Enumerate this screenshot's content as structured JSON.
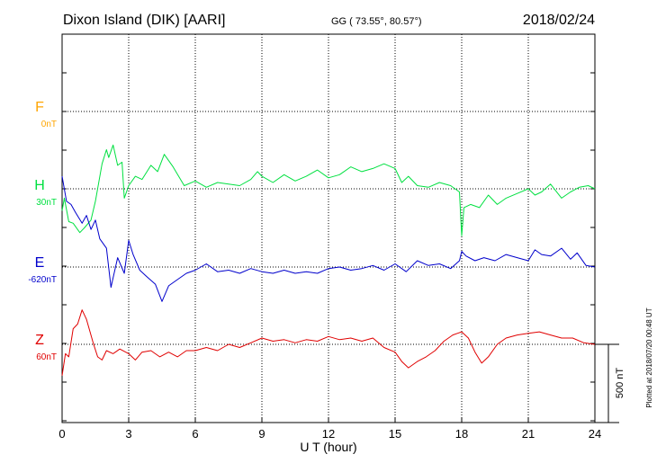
{
  "header": {
    "station": "Dixon Island (DIK)  [AARI]",
    "coords": "GG ( 73.55°,  80.57°)",
    "date": "2018/02/24"
  },
  "side_note": "Plotted at 2018/07/20 00:48 UT",
  "colors": {
    "F": "#ffa500",
    "H": "#00e040",
    "E": "#0000cc",
    "Z": "#e00000",
    "axis": "#000000",
    "grid": "#000000"
  },
  "chart_data": {
    "type": "line",
    "xlabel": "U T (hour)",
    "xlim": [
      0,
      24
    ],
    "x_ticks": [
      0,
      3,
      6,
      9,
      12,
      15,
      18,
      21,
      24
    ],
    "y_units": "nT",
    "scale_bar": {
      "label": "500 nT",
      "value": 500
    },
    "grid": true,
    "series": [
      {
        "name": "F",
        "baseline_label": "0nT",
        "baseline": 0,
        "x": [],
        "values": []
      },
      {
        "name": "H",
        "baseline_label": "30nT",
        "baseline": 30,
        "x": [
          0,
          0.1,
          0.3,
          0.5,
          0.8,
          1.0,
          1.3,
          1.5,
          1.8,
          2.0,
          2.1,
          2.3,
          2.5,
          2.7,
          2.8,
          3.0,
          3.3,
          3.6,
          4.0,
          4.3,
          4.6,
          5.0,
          5.5,
          6.0,
          6.5,
          7.0,
          7.5,
          8.0,
          8.5,
          8.8,
          9.0,
          9.5,
          10.0,
          10.5,
          11.0,
          11.5,
          12.0,
          12.5,
          13.0,
          13.5,
          14.0,
          14.5,
          15.0,
          15.3,
          15.6,
          16.0,
          16.5,
          17.0,
          17.5,
          17.9,
          18.0,
          18.1,
          18.4,
          18.8,
          19.2,
          19.6,
          20.0,
          20.5,
          21.0,
          21.3,
          21.6,
          22.0,
          22.5,
          22.9,
          23.3,
          23.7,
          24.0
        ],
        "values": [
          -140,
          -60,
          -210,
          -220,
          -280,
          -250,
          -200,
          -80,
          160,
          250,
          200,
          280,
          150,
          170,
          -60,
          20,
          80,
          60,
          150,
          110,
          220,
          140,
          20,
          50,
          10,
          40,
          30,
          20,
          60,
          110,
          80,
          40,
          90,
          50,
          80,
          120,
          70,
          90,
          140,
          110,
          130,
          160,
          130,
          40,
          80,
          20,
          10,
          40,
          20,
          -20,
          -300,
          -120,
          -100,
          -120,
          -40,
          -100,
          -60,
          -30,
          0,
          -40,
          -20,
          30,
          -60,
          -20,
          10,
          20,
          0
        ]
      },
      {
        "name": "E",
        "baseline_label": "-620nT",
        "baseline": -620,
        "x": [
          0,
          0.2,
          0.4,
          0.6,
          0.9,
          1.1,
          1.3,
          1.5,
          1.7,
          2.0,
          2.2,
          2.5,
          2.8,
          3.0,
          3.2,
          3.5,
          3.8,
          4.2,
          4.5,
          4.8,
          5.2,
          5.6,
          6.0,
          6.5,
          7.0,
          7.5,
          8.0,
          8.5,
          9.0,
          9.5,
          10.0,
          10.5,
          11.0,
          11.5,
          12.0,
          12.5,
          13.0,
          13.5,
          14.0,
          14.5,
          15.0,
          15.5,
          16.0,
          16.5,
          17.0,
          17.5,
          17.9,
          18.0,
          18.2,
          18.6,
          19.0,
          19.5,
          20.0,
          20.5,
          21.0,
          21.3,
          21.6,
          22.0,
          22.5,
          22.9,
          23.2,
          23.6,
          24.0
        ],
        "values": [
          580,
          420,
          400,
          350,
          280,
          330,
          240,
          300,
          180,
          120,
          -130,
          60,
          -40,
          170,
          80,
          -20,
          -60,
          -110,
          -220,
          -120,
          -80,
          -40,
          -20,
          20,
          -30,
          -20,
          -40,
          -10,
          -30,
          -40,
          -20,
          -40,
          -30,
          -40,
          -10,
          0,
          -20,
          -10,
          10,
          -20,
          20,
          -30,
          40,
          10,
          20,
          -10,
          40,
          100,
          70,
          40,
          60,
          40,
          80,
          60,
          40,
          110,
          80,
          70,
          120,
          50,
          90,
          10,
          0
        ]
      },
      {
        "name": "Z",
        "baseline_label": "60nT",
        "baseline": 60,
        "x": [
          0,
          0.15,
          0.3,
          0.5,
          0.7,
          0.9,
          1.1,
          1.4,
          1.6,
          1.8,
          2.0,
          2.3,
          2.6,
          3.0,
          3.3,
          3.6,
          4.0,
          4.4,
          4.8,
          5.2,
          5.6,
          6.0,
          6.5,
          7.0,
          7.5,
          8.0,
          8.5,
          9.0,
          9.5,
          10.0,
          10.5,
          11.0,
          11.5,
          12.0,
          12.5,
          13.0,
          13.5,
          14.0,
          14.5,
          15.0,
          15.3,
          15.6,
          16.0,
          16.4,
          16.8,
          17.2,
          17.6,
          18.0,
          18.3,
          18.6,
          18.9,
          19.2,
          19.6,
          20.0,
          20.5,
          21.0,
          21.5,
          22.0,
          22.5,
          23.0,
          23.5,
          24.0
        ],
        "values": [
          -200,
          -60,
          -80,
          100,
          130,
          220,
          160,
          10,
          -80,
          -100,
          -40,
          -60,
          -30,
          -60,
          -100,
          -50,
          -40,
          -80,
          -50,
          -80,
          -40,
          -40,
          -20,
          -40,
          0,
          -20,
          10,
          40,
          20,
          30,
          10,
          30,
          20,
          50,
          30,
          40,
          20,
          40,
          -20,
          -50,
          -110,
          -150,
          -110,
          -80,
          -40,
          20,
          60,
          80,
          40,
          -50,
          -120,
          -80,
          0,
          40,
          60,
          70,
          80,
          60,
          40,
          40,
          10,
          0
        ]
      }
    ]
  }
}
